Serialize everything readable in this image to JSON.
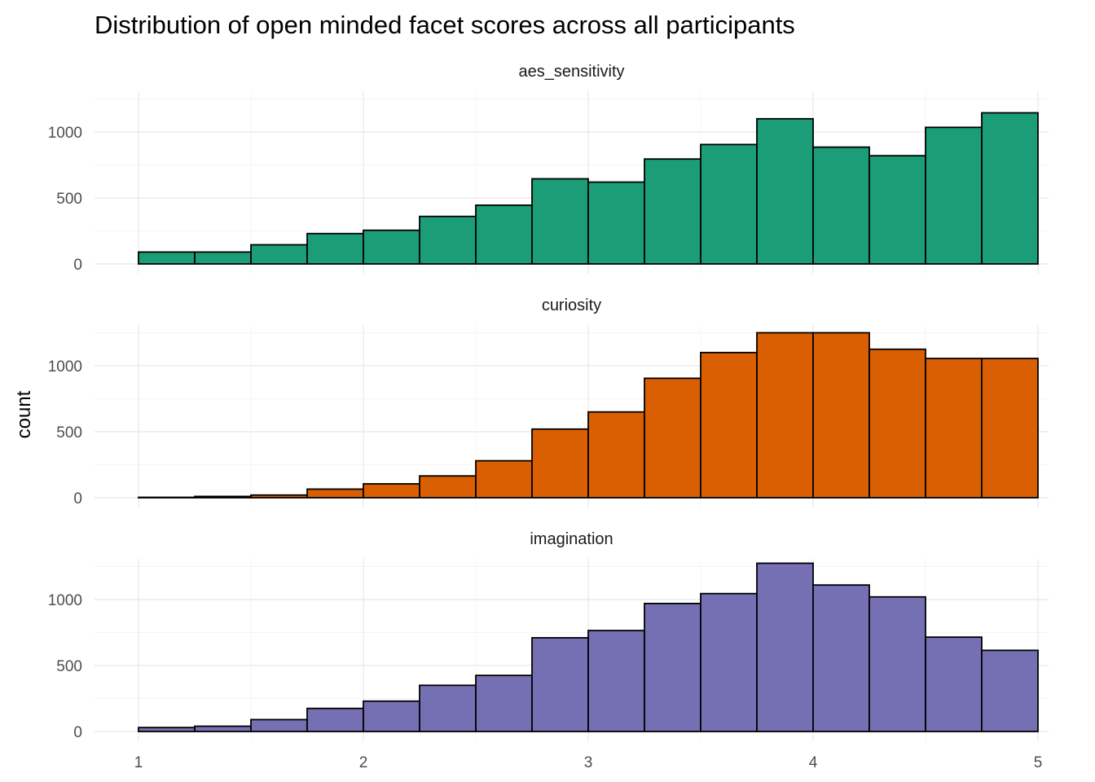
{
  "chart_data": {
    "type": "bar",
    "title": "Distribution of open minded facet scores across all participants",
    "xlabel": "",
    "ylabel": "count",
    "xlim": [
      1,
      5
    ],
    "ylim": [
      0,
      1250
    ],
    "x_ticks": [
      1,
      2,
      3,
      4,
      5
    ],
    "y_ticks": [
      0,
      500,
      1000
    ],
    "y_tick_labels": [
      "0",
      "500",
      "1000"
    ],
    "bin_width": 0.25,
    "bin_starts": [
      1.0,
      1.25,
      1.5,
      1.75,
      2.0,
      2.25,
      2.5,
      2.75,
      3.0,
      3.25,
      3.5,
      3.75,
      4.0,
      4.25,
      4.5,
      4.75
    ],
    "grid": true,
    "legend": "none",
    "facets": [
      {
        "label": "aes_sensitivity",
        "color": "#1B9E77",
        "values": [
          90,
          90,
          145,
          230,
          255,
          360,
          445,
          645,
          620,
          795,
          905,
          1100,
          885,
          820,
          1035,
          1145
        ]
      },
      {
        "label": "curiosity",
        "color": "#D95F02",
        "values": [
          3,
          10,
          20,
          65,
          105,
          165,
          280,
          520,
          650,
          905,
          1100,
          1250,
          1250,
          1125,
          1055,
          1055
        ]
      },
      {
        "label": "imagination",
        "color": "#7570B3",
        "values": [
          30,
          40,
          90,
          175,
          230,
          350,
          425,
          710,
          765,
          970,
          1045,
          1275,
          1110,
          1020,
          715,
          615
        ]
      }
    ]
  }
}
